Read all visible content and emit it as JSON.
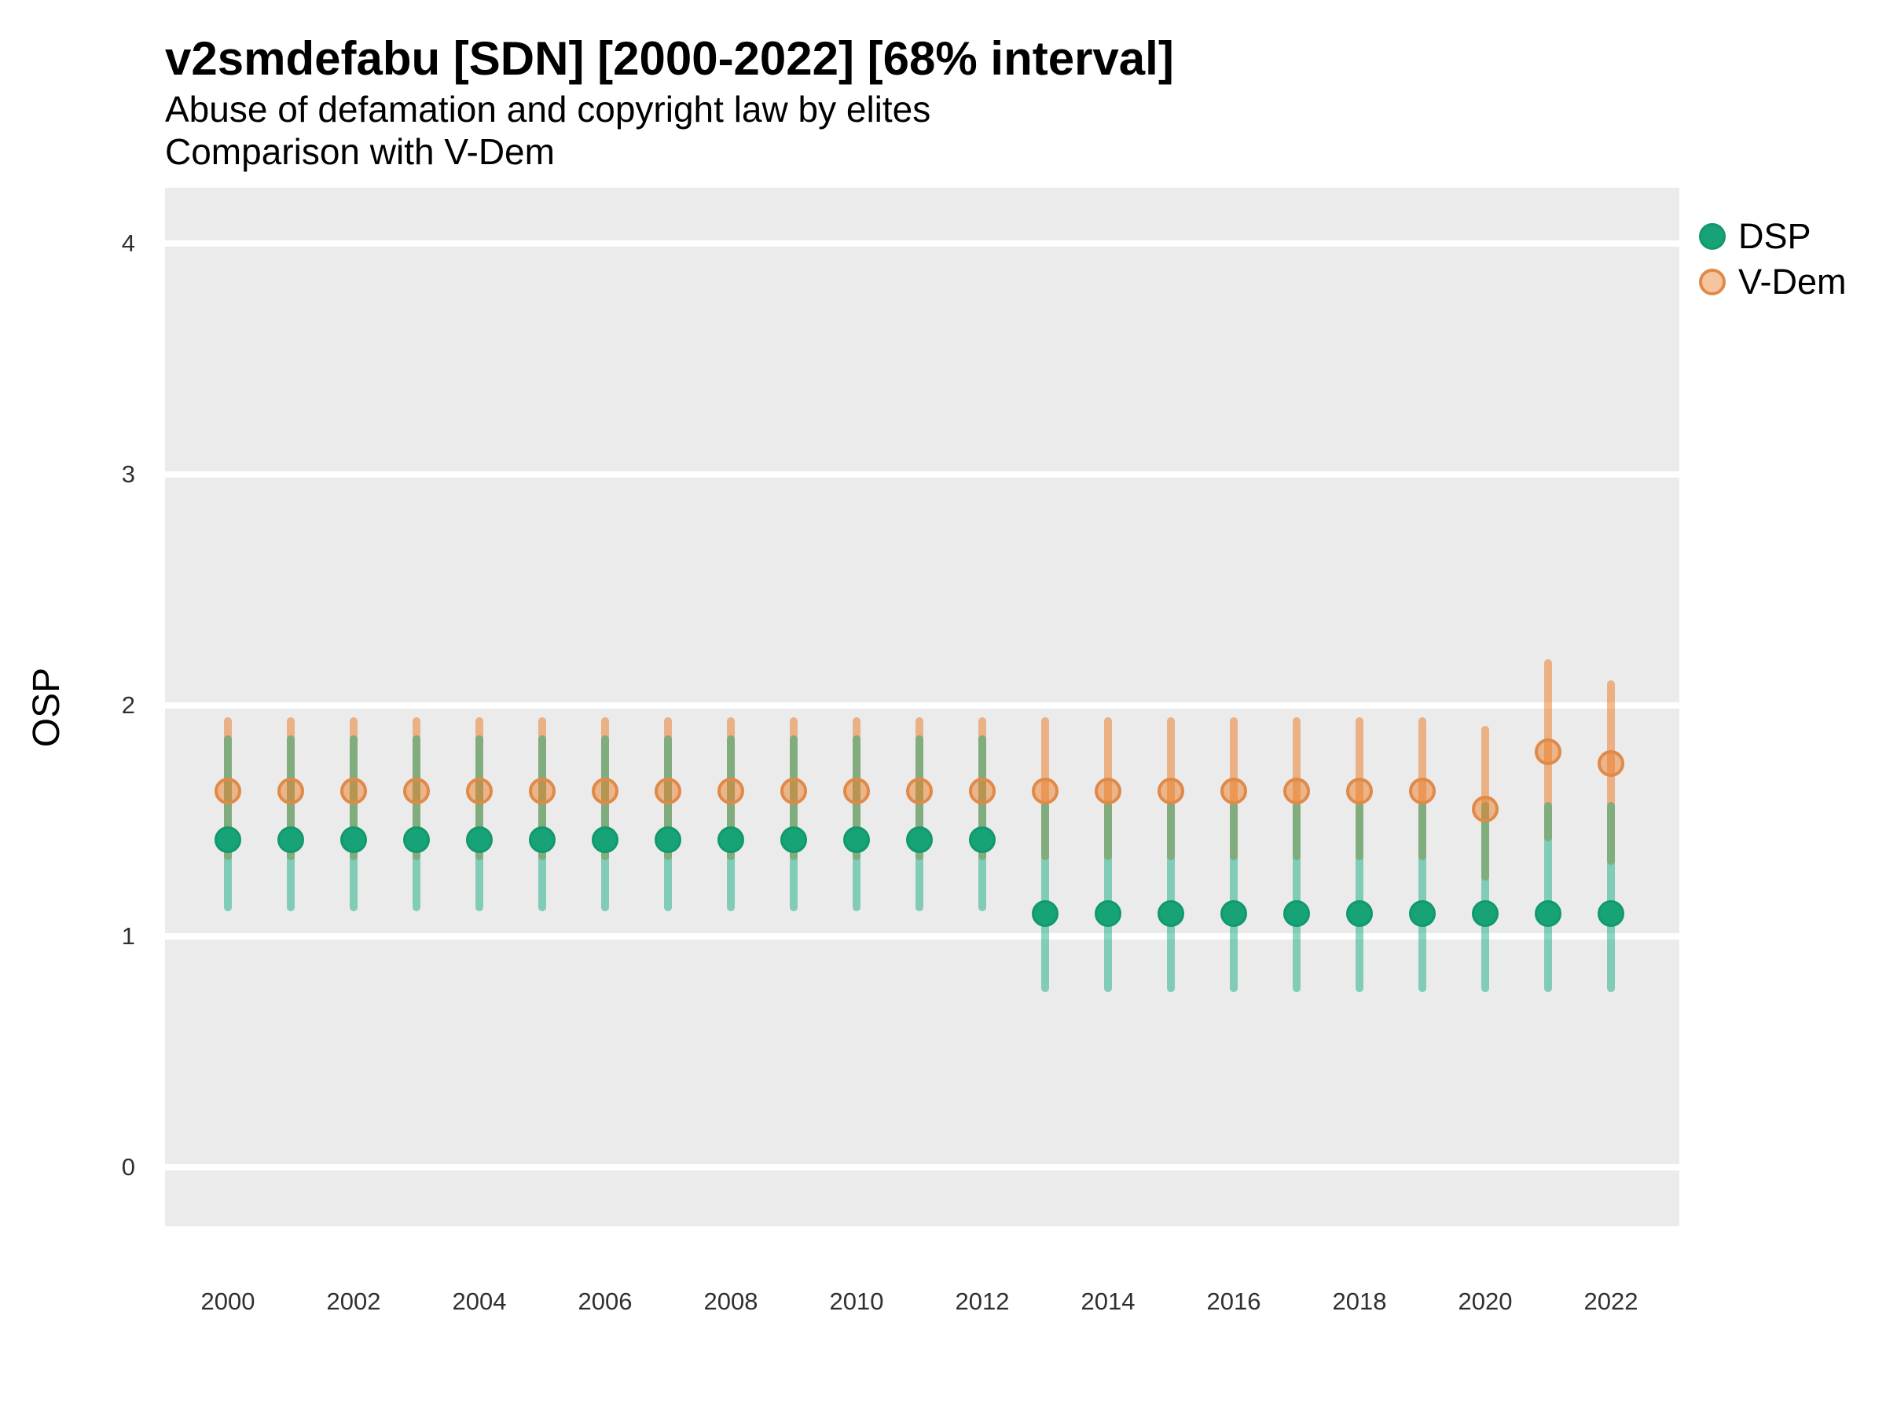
{
  "chart_data": {
    "type": "scatter",
    "title": "v2smdefabu [SDN] [2000-2022] [68% interval]",
    "subtitle": "Abuse of defamation and copyright law by elites",
    "caption_line": "Comparison with V-Dem",
    "xlabel": "",
    "ylabel": "OSP",
    "xlim": [
      1999,
      2023.1
    ],
    "ylim": [
      -0.25,
      4.25
    ],
    "grid": "horizontal-only",
    "legend_position": "right",
    "y_ticks": [
      0,
      1,
      2,
      3,
      4
    ],
    "x_ticks": [
      2000,
      2002,
      2004,
      2006,
      2008,
      2010,
      2012,
      2014,
      2016,
      2018,
      2020,
      2022
    ],
    "interval_note": "68% credible interval shown as vertical bars; overlap of the two translucent bars renders olive",
    "series": [
      {
        "name": "DSP",
        "point_fill": "#17A377",
        "point_border": "#11996C",
        "bar_color": "rgba(0,166,118,0.45)",
        "values": [
          {
            "year": 2000,
            "est": 1.42,
            "lo": 1.11,
            "hi": 1.87
          },
          {
            "year": 2001,
            "est": 1.42,
            "lo": 1.11,
            "hi": 1.87
          },
          {
            "year": 2002,
            "est": 1.42,
            "lo": 1.11,
            "hi": 1.87
          },
          {
            "year": 2003,
            "est": 1.42,
            "lo": 1.11,
            "hi": 1.87
          },
          {
            "year": 2004,
            "est": 1.42,
            "lo": 1.11,
            "hi": 1.87
          },
          {
            "year": 2005,
            "est": 1.42,
            "lo": 1.11,
            "hi": 1.87
          },
          {
            "year": 2006,
            "est": 1.42,
            "lo": 1.11,
            "hi": 1.87
          },
          {
            "year": 2007,
            "est": 1.42,
            "lo": 1.11,
            "hi": 1.87
          },
          {
            "year": 2008,
            "est": 1.42,
            "lo": 1.11,
            "hi": 1.87
          },
          {
            "year": 2009,
            "est": 1.42,
            "lo": 1.11,
            "hi": 1.87
          },
          {
            "year": 2010,
            "est": 1.42,
            "lo": 1.11,
            "hi": 1.87
          },
          {
            "year": 2011,
            "est": 1.42,
            "lo": 1.11,
            "hi": 1.87
          },
          {
            "year": 2012,
            "est": 1.42,
            "lo": 1.11,
            "hi": 1.87
          },
          {
            "year": 2013,
            "est": 1.1,
            "lo": 0.76,
            "hi": 1.58
          },
          {
            "year": 2014,
            "est": 1.1,
            "lo": 0.76,
            "hi": 1.58
          },
          {
            "year": 2015,
            "est": 1.1,
            "lo": 0.76,
            "hi": 1.58
          },
          {
            "year": 2016,
            "est": 1.1,
            "lo": 0.76,
            "hi": 1.58
          },
          {
            "year": 2017,
            "est": 1.1,
            "lo": 0.76,
            "hi": 1.58
          },
          {
            "year": 2018,
            "est": 1.1,
            "lo": 0.76,
            "hi": 1.58
          },
          {
            "year": 2019,
            "est": 1.1,
            "lo": 0.76,
            "hi": 1.58
          },
          {
            "year": 2020,
            "est": 1.1,
            "lo": 0.76,
            "hi": 1.58
          },
          {
            "year": 2021,
            "est": 1.1,
            "lo": 0.76,
            "hi": 1.58
          },
          {
            "year": 2022,
            "est": 1.1,
            "lo": 0.76,
            "hi": 1.58
          }
        ]
      },
      {
        "name": "V-Dem",
        "point_fill": "rgba(235,125,40,0.50)",
        "point_border": "#DF8A49",
        "bar_color": "rgba(235,125,40,0.52)",
        "values": [
          {
            "year": 2000,
            "est": 1.63,
            "lo": 1.33,
            "hi": 1.95
          },
          {
            "year": 2001,
            "est": 1.63,
            "lo": 1.33,
            "hi": 1.95
          },
          {
            "year": 2002,
            "est": 1.63,
            "lo": 1.33,
            "hi": 1.95
          },
          {
            "year": 2003,
            "est": 1.63,
            "lo": 1.33,
            "hi": 1.95
          },
          {
            "year": 2004,
            "est": 1.63,
            "lo": 1.33,
            "hi": 1.95
          },
          {
            "year": 2005,
            "est": 1.63,
            "lo": 1.33,
            "hi": 1.95
          },
          {
            "year": 2006,
            "est": 1.63,
            "lo": 1.33,
            "hi": 1.95
          },
          {
            "year": 2007,
            "est": 1.63,
            "lo": 1.33,
            "hi": 1.95
          },
          {
            "year": 2008,
            "est": 1.63,
            "lo": 1.33,
            "hi": 1.95
          },
          {
            "year": 2009,
            "est": 1.63,
            "lo": 1.33,
            "hi": 1.95
          },
          {
            "year": 2010,
            "est": 1.63,
            "lo": 1.33,
            "hi": 1.95
          },
          {
            "year": 2011,
            "est": 1.63,
            "lo": 1.33,
            "hi": 1.95
          },
          {
            "year": 2012,
            "est": 1.63,
            "lo": 1.33,
            "hi": 1.95
          },
          {
            "year": 2013,
            "est": 1.63,
            "lo": 1.33,
            "hi": 1.95
          },
          {
            "year": 2014,
            "est": 1.63,
            "lo": 1.33,
            "hi": 1.95
          },
          {
            "year": 2015,
            "est": 1.63,
            "lo": 1.33,
            "hi": 1.95
          },
          {
            "year": 2016,
            "est": 1.63,
            "lo": 1.33,
            "hi": 1.95
          },
          {
            "year": 2017,
            "est": 1.63,
            "lo": 1.33,
            "hi": 1.95
          },
          {
            "year": 2018,
            "est": 1.63,
            "lo": 1.33,
            "hi": 1.95
          },
          {
            "year": 2019,
            "est": 1.63,
            "lo": 1.33,
            "hi": 1.95
          },
          {
            "year": 2020,
            "est": 1.55,
            "lo": 1.24,
            "hi": 1.91
          },
          {
            "year": 2021,
            "est": 1.8,
            "lo": 1.41,
            "hi": 2.2
          },
          {
            "year": 2022,
            "est": 1.75,
            "lo": 1.31,
            "hi": 2.11
          }
        ]
      }
    ]
  },
  "colors": {
    "panel_bg": "#EBEBEB",
    "gridline": "#FFFFFF",
    "title_text": "#000000",
    "tick_text": "#303030"
  }
}
